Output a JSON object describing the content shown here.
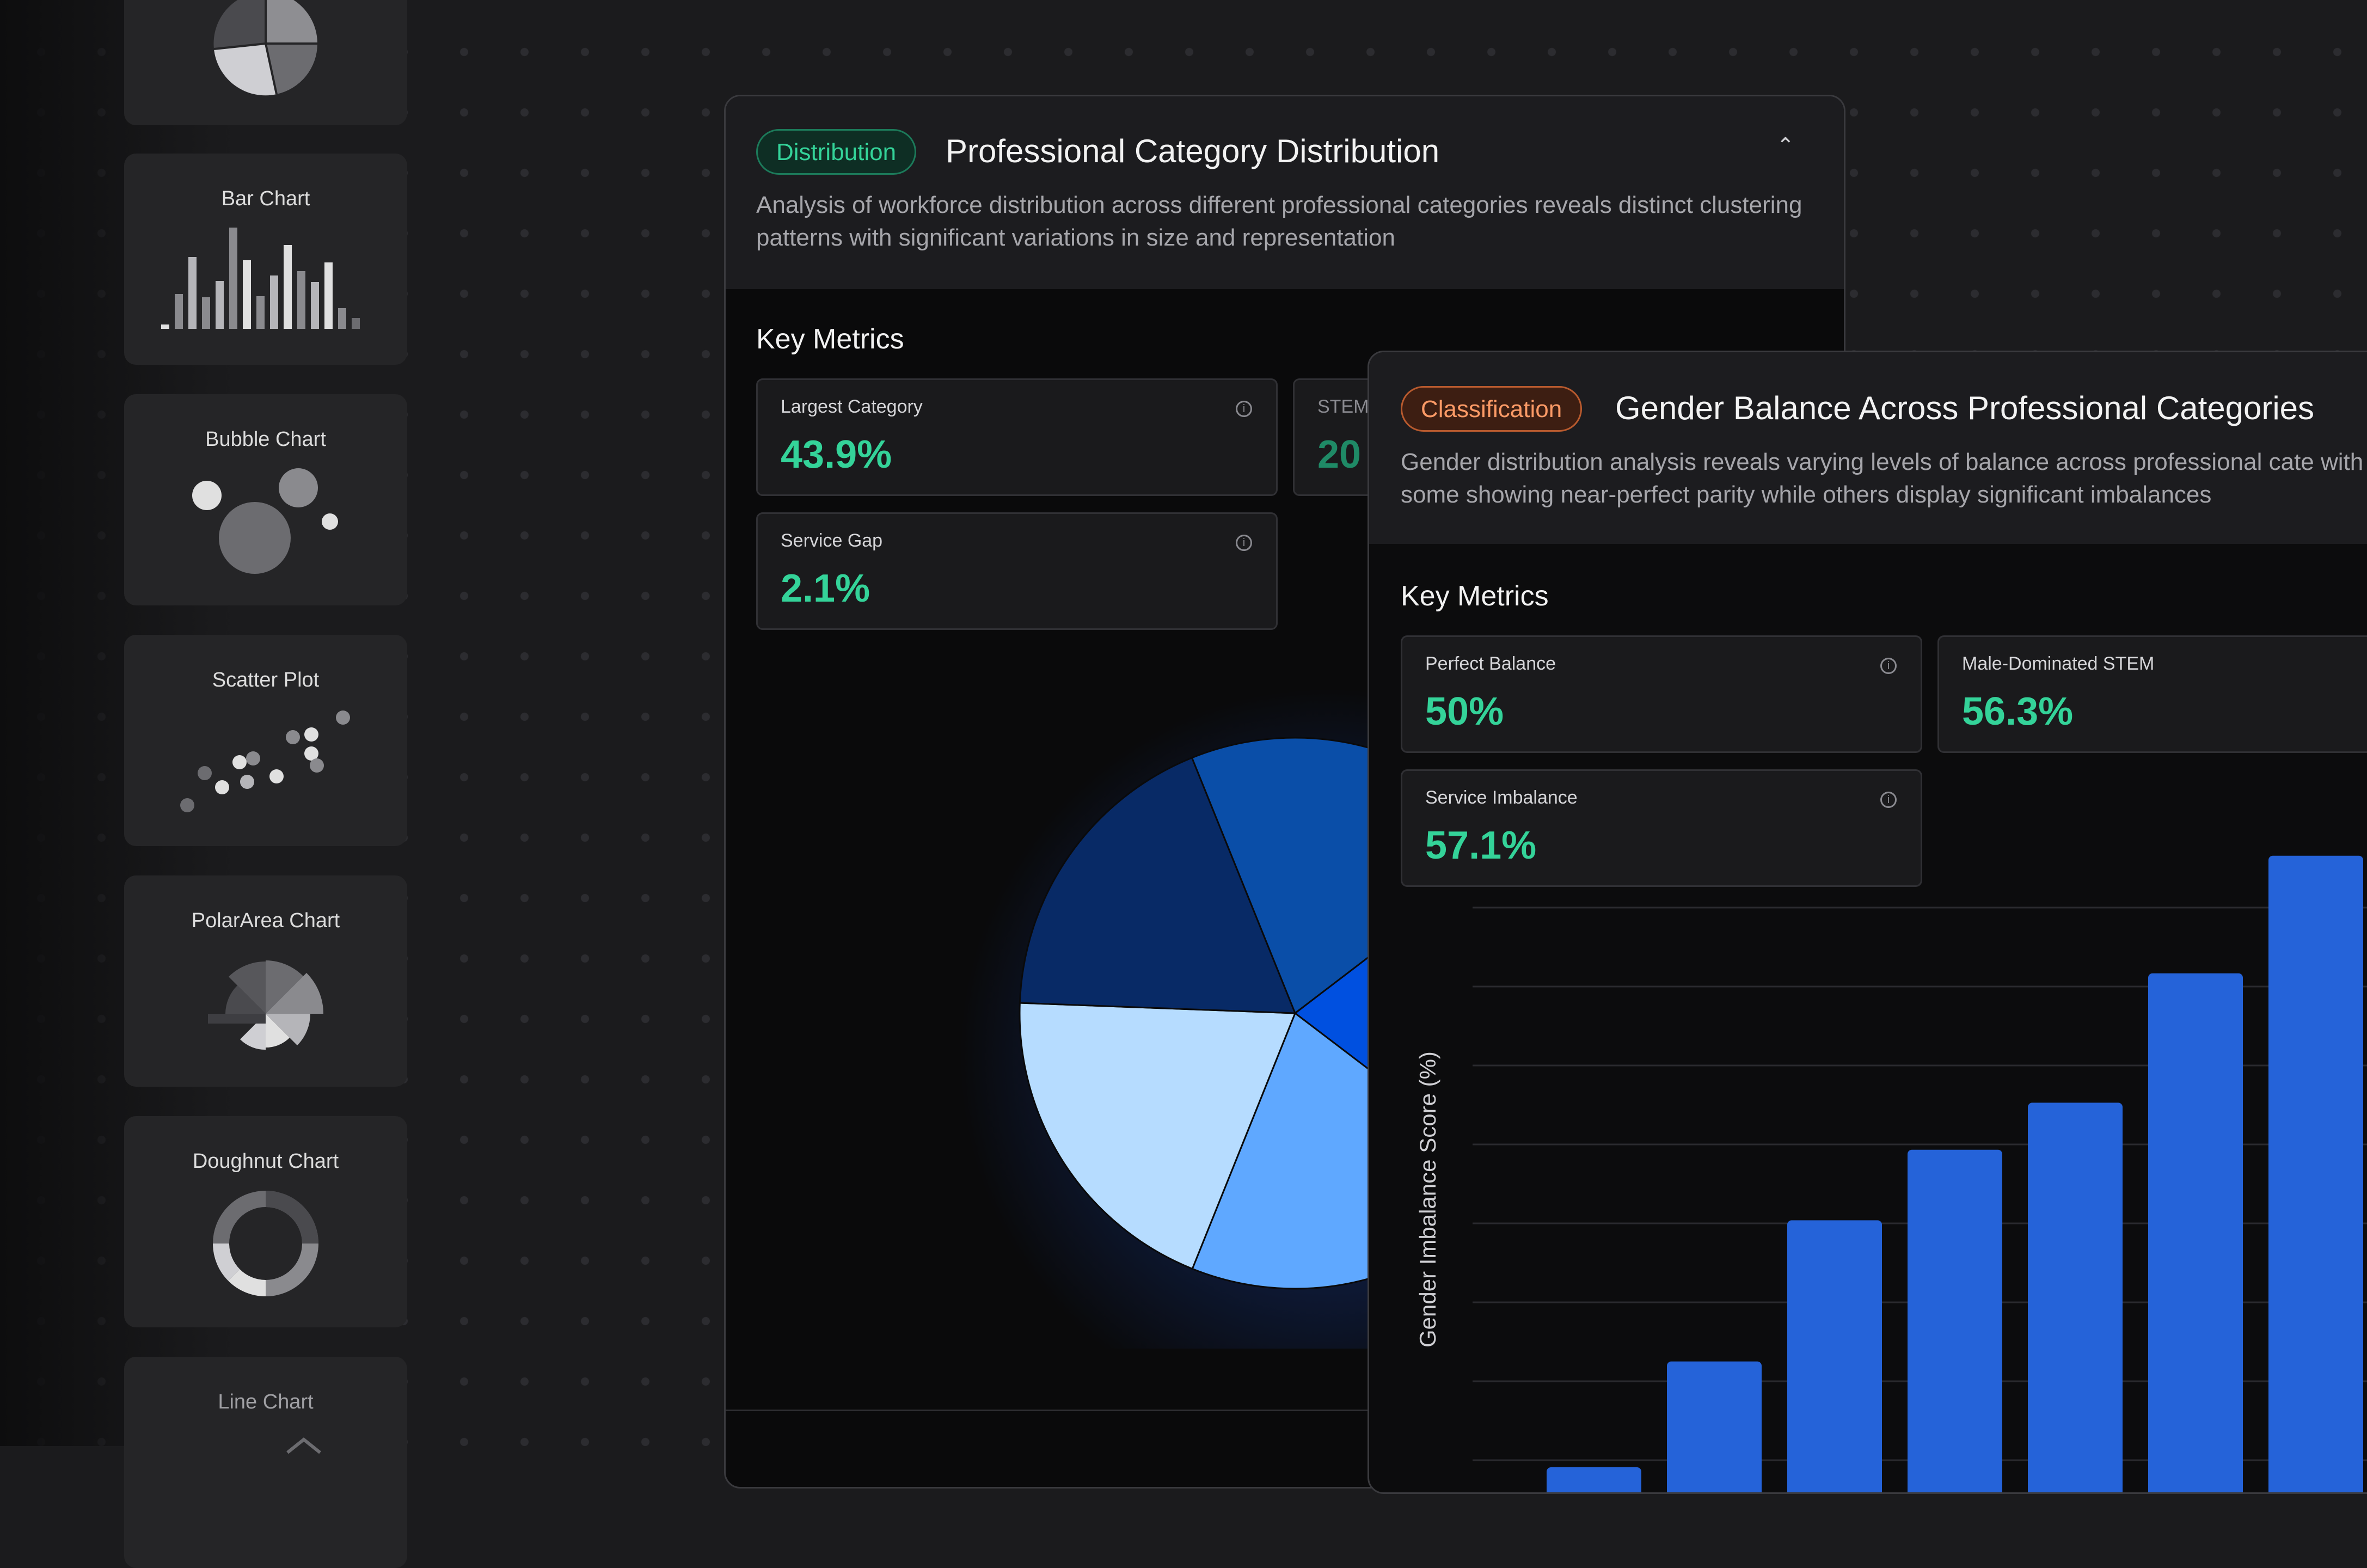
{
  "sidebar": {
    "cards": [
      {
        "label": "",
        "icon": "pie-chart-icon"
      },
      {
        "label": "Bar Chart",
        "icon": "bar-chart-icon"
      },
      {
        "label": "Bubble Chart",
        "icon": "bubble-chart-icon"
      },
      {
        "label": "Scatter Plot",
        "icon": "scatter-plot-icon"
      },
      {
        "label": "PolarArea Chart",
        "icon": "polar-area-chart-icon"
      },
      {
        "label": "Doughnut Chart",
        "icon": "doughnut-chart-icon"
      },
      {
        "label": "Line Chart",
        "icon": "line-chart-icon"
      }
    ]
  },
  "panel1": {
    "badge": "Distribution",
    "title": "Professional Category Distribution",
    "description": "Analysis of workforce distribution across different professional categories reveals distinct clustering patterns with significant variations in size and representation",
    "section_title": "Key Metrics",
    "metrics": [
      {
        "label": "Largest Category",
        "value": "43.9%"
      },
      {
        "label": "STEM",
        "value": "20"
      },
      {
        "label": "Service Gap",
        "value": "2.1%"
      }
    ]
  },
  "panel2": {
    "badge": "Classification",
    "title": "Gender Balance Across Professional Categories",
    "description": "Gender distribution analysis reveals varying levels of balance across professional cate with some showing near-perfect parity while others display significant imbalances",
    "section_title": "Key Metrics",
    "metrics": [
      {
        "label": "Perfect Balance",
        "value": "50%"
      },
      {
        "label": "Male-Dominated STEM",
        "value": "56.3%"
      },
      {
        "label": "Service Imbalance",
        "value": "57.1%"
      }
    ]
  },
  "colors": {
    "accent_green": "#34d399",
    "accent_orange": "#fb9a66",
    "bar_blue": "#2563d9"
  },
  "chart_data": [
    {
      "type": "pie",
      "slice_colors": [
        "#0a4ea8",
        "#0050e0",
        "#5fa8ff",
        "#b6dcff",
        "#082a66"
      ],
      "values": [
        17,
        17,
        17,
        16,
        15
      ]
    },
    {
      "type": "bar",
      "ylabel": "Gender Imbalance Score (%)",
      "values": [
        1,
        3.7,
        7.3,
        9.1,
        10.3,
        13.6,
        16.6
      ],
      "color": "#2563d9",
      "grid": true
    }
  ]
}
